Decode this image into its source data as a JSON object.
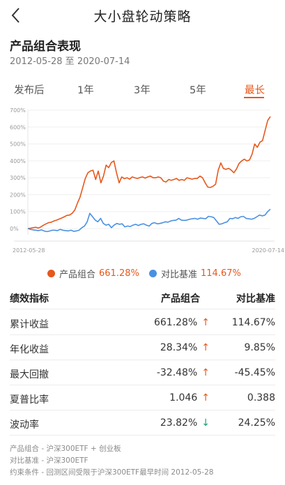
{
  "header": {
    "title": "大小盘轮动策略"
  },
  "section": {
    "title": "产品组合表现",
    "date_range": "2012-05-28 至 2020-07-14"
  },
  "tabs": [
    {
      "label": "发布后",
      "active": false
    },
    {
      "label": "1年",
      "active": false
    },
    {
      "label": "3年",
      "active": false
    },
    {
      "label": "5年",
      "active": false
    },
    {
      "label": "最长",
      "active": true
    }
  ],
  "colors": {
    "accent": "#e6581c",
    "portfolio": "#e6581c",
    "benchmark": "#4a90e2",
    "up": "#e6581c",
    "down": "#1aa06d"
  },
  "chart_data": {
    "type": "line",
    "x_start_label": "2012-05-28",
    "x_end_label": "2020-07-14",
    "y_ticks": [
      "700%",
      "600%",
      "500%",
      "400%",
      "300%",
      "200%",
      "100%",
      "0%"
    ],
    "ylim": [
      -50,
      700
    ],
    "grid": true,
    "legend": "bottom",
    "series": [
      {
        "name": "产品组合",
        "color": "#e6581c",
        "values": [
          0,
          2,
          5,
          8,
          3,
          10,
          20,
          28,
          35,
          38,
          45,
          50,
          56,
          62,
          70,
          78,
          80,
          90,
          110,
          150,
          185,
          240,
          295,
          330,
          340,
          345,
          290,
          340,
          270,
          310,
          375,
          360,
          390,
          400,
          330,
          270,
          305,
          295,
          300,
          292,
          305,
          300,
          296,
          302,
          305,
          298,
          305,
          310,
          300,
          300,
          305,
          300,
          280,
          275,
          290,
          285,
          290,
          296,
          285,
          290,
          285,
          300,
          296,
          292,
          296,
          296,
          310,
          300,
          270,
          245,
          243,
          250,
          262,
          345,
          388,
          355,
          350,
          356,
          345,
          330,
          352,
          385,
          400,
          410,
          400,
          405,
          440,
          500,
          480,
          510,
          520,
          580,
          640,
          661.28
        ]
      },
      {
        "name": "对比基准",
        "color": "#4a90e2",
        "values": [
          0,
          -5,
          -8,
          -10,
          -12,
          -8,
          -14,
          -18,
          -15,
          -10,
          -10,
          -12,
          -5,
          -10,
          -12,
          -14,
          -10,
          -16,
          -14,
          -10,
          5,
          15,
          40,
          90,
          70,
          50,
          40,
          60,
          30,
          20,
          25,
          5,
          20,
          30,
          25,
          28,
          10,
          15,
          12,
          20,
          25,
          18,
          25,
          28,
          20,
          15,
          30,
          35,
          28,
          30,
          34,
          40,
          38,
          45,
          48,
          50,
          60,
          50,
          48,
          50,
          55,
          58,
          60,
          55,
          62,
          60,
          58,
          72,
          70,
          65,
          45,
          25,
          28,
          35,
          40,
          60,
          58,
          65,
          60,
          70,
          72,
          60,
          58,
          55,
          60,
          70,
          80,
          75,
          80,
          100,
          114.67
        ]
      }
    ]
  },
  "legend": {
    "portfolio": {
      "label": "产品组合",
      "value": "661.28%"
    },
    "benchmark": {
      "label": "对比基准",
      "value": "114.67%"
    }
  },
  "table": {
    "headers": [
      "绩效指标",
      "产品组合",
      "对比基准"
    ],
    "rows": [
      {
        "metric": "累计收益",
        "portfolio": "661.28%",
        "arrow": "↑",
        "dir": "up",
        "benchmark": "114.67%"
      },
      {
        "metric": "年化收益",
        "portfolio": "28.34%",
        "arrow": "↑",
        "dir": "up",
        "benchmark": "9.85%"
      },
      {
        "metric": "最大回撤",
        "portfolio": "-32.48%",
        "arrow": "↑",
        "dir": "up",
        "benchmark": "-45.45%"
      },
      {
        "metric": "夏普比率",
        "portfolio": "1.046",
        "arrow": "↑",
        "dir": "up",
        "benchmark": "0.388"
      },
      {
        "metric": "波动率",
        "portfolio": "23.82%",
        "arrow": "↓",
        "dir": "down",
        "benchmark": "24.25%"
      }
    ]
  },
  "footnotes": [
    "产品组合 - 沪深300ETF + 创业板",
    "对比基准 - 沪深300ETF",
    "约束条件 - 回测区间受限于沪深300ETF最早时间 2012-05-28"
  ]
}
